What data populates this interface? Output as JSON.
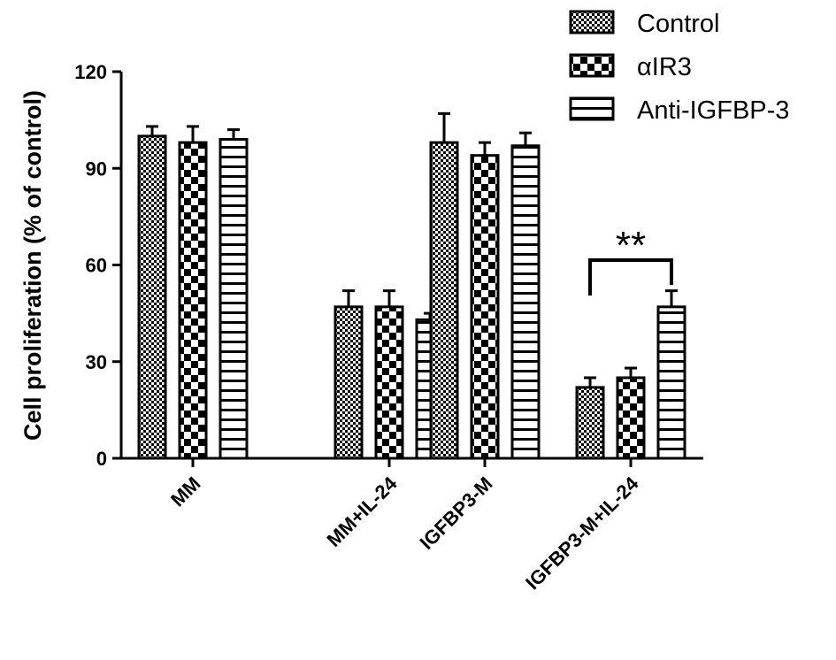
{
  "chart_data": {
    "type": "bar",
    "title": "",
    "xlabel": "",
    "ylabel": "Cell proliferation (% of control)",
    "ylim": [
      0,
      120
    ],
    "yticks": [
      "0",
      "30",
      "60",
      "90",
      "120"
    ],
    "categories": [
      "MM",
      "MM+IL-24",
      "IGFBP3-M",
      "IGFBP3-M+IL-24"
    ],
    "series": [
      {
        "name": "Control",
        "pattern": "fine-checker",
        "values": [
          100,
          47,
          98,
          22
        ],
        "errors": [
          3,
          5,
          9,
          3
        ]
      },
      {
        "name": "αIR3",
        "pattern": "coarse-checker",
        "values": [
          98,
          47,
          94,
          25
        ],
        "errors": [
          5,
          5,
          4,
          3
        ]
      },
      {
        "name": "Anti-IGFBP-3",
        "pattern": "horizontal-lines",
        "values": [
          99,
          43,
          97,
          47
        ],
        "errors": [
          3,
          2,
          4,
          5
        ]
      }
    ],
    "legend_position": "top-right",
    "grid": false,
    "annotations": [
      {
        "text": "**",
        "category": "IGFBP3-M+IL-24",
        "from_series": "Control",
        "to_series": "Anti-IGFBP-3"
      }
    ],
    "colors": {
      "bar_outline": "#000000",
      "fill": "#ffffff",
      "pattern": "#000000"
    }
  }
}
